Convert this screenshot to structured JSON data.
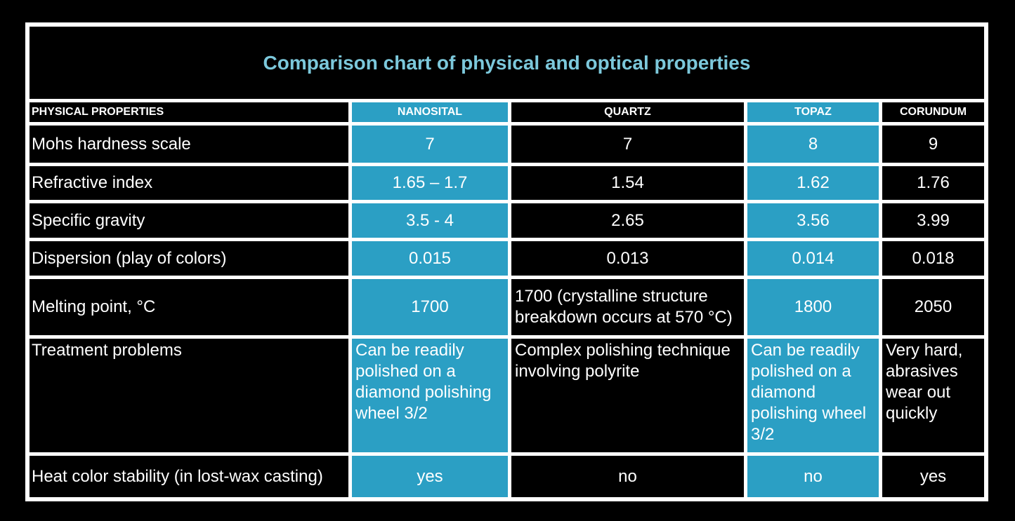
{
  "title": "Comparison chart of physical and optical properties",
  "colors": {
    "background": "#000000",
    "grid_lines": "#FFFFFF",
    "highlight_teal": "#2B9FC4",
    "title_cyan": "#7CC8DB",
    "text": "#FFFFFF"
  },
  "table": {
    "header": {
      "property": "PHYSICAL PROPERTIES",
      "nanosital": "NANOSITAL",
      "quartz": "QUARTZ",
      "topaz": "TOPAZ",
      "corundum": "CORUNDUM"
    },
    "highlighted_columns": [
      "NANOSITAL",
      "TOPAZ"
    ],
    "rows": [
      {
        "property": "Mohs hardness scale",
        "values": [
          "7",
          "7",
          "8",
          "9"
        ]
      },
      {
        "property": "Refractive index",
        "values": [
          "1.65 – 1.7",
          "1.54",
          "1.62",
          "1.76"
        ]
      },
      {
        "property": "Specific gravity",
        "values": [
          "3.5 - 4",
          "2.65",
          "3.56",
          "3.99"
        ]
      },
      {
        "property": "Dispersion (play of colors)",
        "values": [
          "0.015",
          "0.013",
          "0.014",
          "0.018"
        ]
      },
      {
        "property": "Melting point, °C",
        "values": [
          "1700",
          "1700 (crystalline structure breakdown occurs at 570 °C)",
          "1800",
          "2050"
        ]
      },
      {
        "property": "Treatment problems",
        "values": [
          "Can be readily polished on a diamond polishing wheel 3/2",
          "Complex polishing technique involving polyrite",
          "Can be readily polished on a diamond polishing wheel 3/2",
          "Very hard, abrasives wear out quickly"
        ]
      },
      {
        "property": "Heat color stability (in lost-wax casting)",
        "values": [
          "yes",
          "no",
          "no",
          "yes"
        ]
      }
    ]
  },
  "chart_data": {
    "type": "table",
    "title": "Comparison chart of physical and optical properties",
    "columns": [
      "PHYSICAL PROPERTIES",
      "NANOSITAL",
      "QUARTZ",
      "TOPAZ",
      "CORUNDUM"
    ],
    "rows": [
      [
        "Mohs hardness scale",
        "7",
        "7",
        "8",
        "9"
      ],
      [
        "Refractive index",
        "1.65 – 1.7",
        "1.54",
        "1.62",
        "1.76"
      ],
      [
        "Specific gravity",
        "3.5 - 4",
        "2.65",
        "3.56",
        "3.99"
      ],
      [
        "Dispersion (play of colors)",
        "0.015",
        "0.013",
        "0.014",
        "0.018"
      ],
      [
        "Melting point, °C",
        "1700",
        "1700 (crystalline structure breakdown occurs at 570 °C)",
        "1800",
        "2050"
      ],
      [
        "Treatment problems",
        "Can be readily polished on a diamond polishing wheel 3/2",
        "Complex polishing technique involving polyrite",
        "Can be readily polished on a diamond polishing wheel 3/2",
        "Very hard, abrasives wear out quickly"
      ],
      [
        "Heat color stability (in lost-wax casting)",
        "yes",
        "no",
        "no",
        "yes"
      ]
    ],
    "highlighted_columns": [
      "NANOSITAL",
      "TOPAZ"
    ],
    "layout": {
      "grid": "white gridlines on black",
      "header_row": true
    }
  }
}
